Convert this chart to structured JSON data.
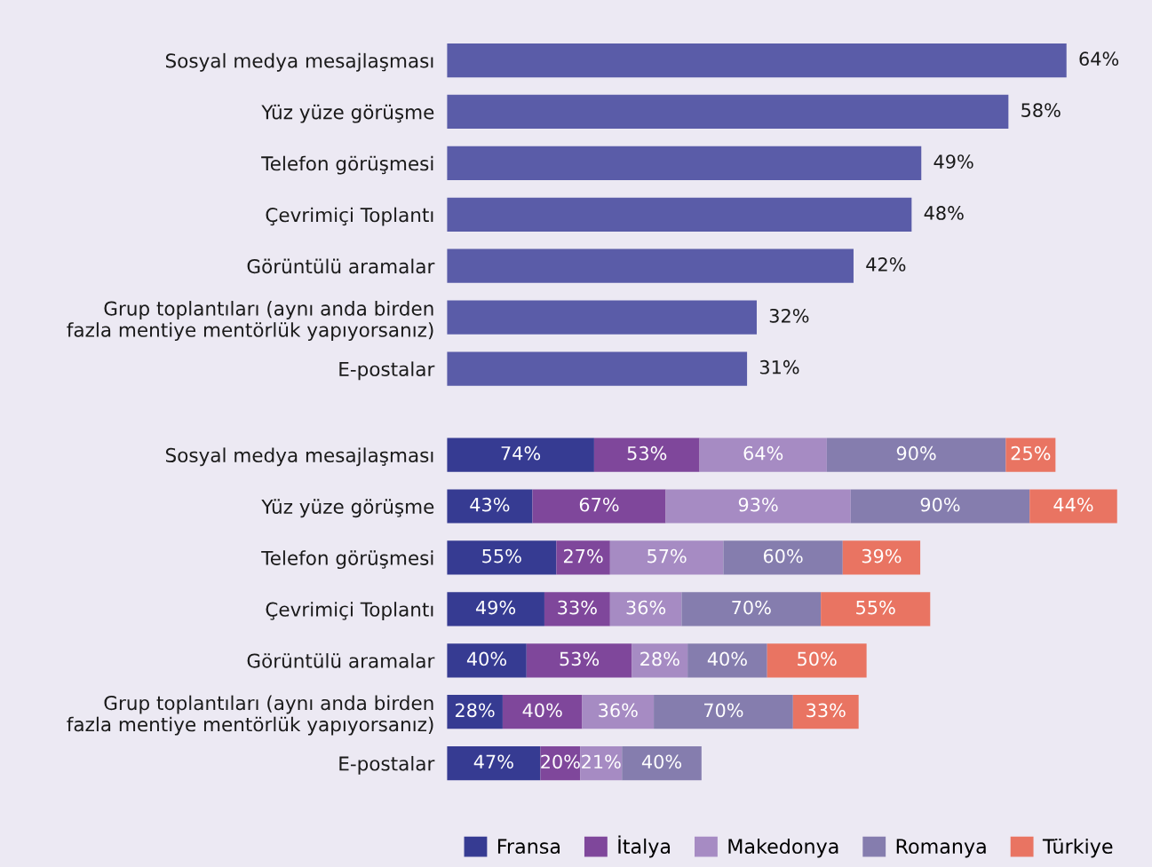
{
  "chart_data": [
    {
      "type": "bar",
      "orientation": "horizontal",
      "color": "#5a5ca8",
      "categories": [
        "Sosyal medya mesajlaşması",
        "Yüz yüze görüşme",
        "Telefon görüşmesi",
        "Çevrimiçi Toplantı",
        "Görüntülü aramalar",
        "Grup toplantıları (aynı anda birden\nfazla mentiye mentörlük yapıyorsanız)",
        "E-postalar"
      ],
      "values": [
        64,
        58,
        49,
        48,
        42,
        32,
        31
      ],
      "value_labels": [
        "64%",
        "58%",
        "49%",
        "48%",
        "42%",
        "32%",
        "31%"
      ],
      "legend": false
    },
    {
      "type": "bar",
      "orientation": "horizontal",
      "stacked": true,
      "categories": [
        "Sosyal medya mesajlaşması",
        "Yüz yüze görüşme",
        "Telefon görüşmesi",
        "Çevrimiçi Toplantı",
        "Görüntülü aramalar",
        "Grup toplantıları (aynı anda birden\nfazla mentiye mentörlük yapıyorsanız)",
        "E-postalar"
      ],
      "series": [
        {
          "name": "Fransa",
          "color": "#363b92",
          "values": [
            74,
            43,
            55,
            49,
            40,
            28,
            47
          ],
          "value_labels": [
            "74%",
            "43%",
            "55%",
            "49%",
            "40%",
            "28%",
            "47%"
          ]
        },
        {
          "name": "İtalya",
          "color": "#7f479b",
          "values": [
            53,
            67,
            27,
            33,
            53,
            40,
            20
          ],
          "value_labels": [
            "53%",
            "67%",
            "27%",
            "33%",
            "53%",
            "40%",
            "20%"
          ]
        },
        {
          "name": "Makedonya",
          "color": "#a68bc3",
          "values": [
            64,
            93,
            57,
            36,
            28,
            36,
            21
          ],
          "value_labels": [
            "64%",
            "93%",
            "57%",
            "36%",
            "28%",
            "36%",
            "21%"
          ]
        },
        {
          "name": "Romanya",
          "color": "#857dae",
          "values": [
            90,
            90,
            60,
            70,
            40,
            70,
            40
          ],
          "value_labels": [
            "90%",
            "90%",
            "60%",
            "70%",
            "40%",
            "70%",
            "40%"
          ]
        },
        {
          "name": "Türkiye",
          "color": "#e97462",
          "values": [
            25,
            44,
            39,
            55,
            50,
            33,
            null
          ],
          "value_labels": [
            "25%",
            "44%",
            "39%",
            "55%",
            "50%",
            "33%",
            null
          ]
        }
      ],
      "legend": "bottom"
    }
  ]
}
